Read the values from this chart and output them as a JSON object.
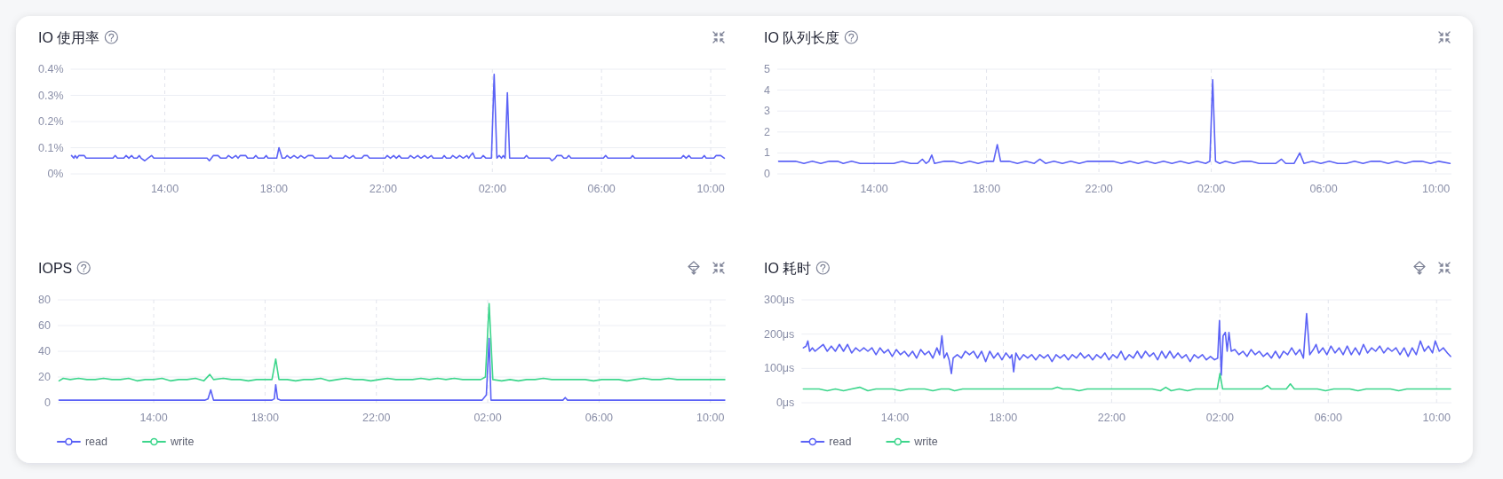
{
  "chart_data": [
    {
      "type": "line",
      "title": "IO 使用率",
      "xlim": [
        "--01-01T10:33",
        "--01-02T10:33"
      ],
      "xticks": [
        {
          "value": "--01-01T14:00",
          "label": "14:00"
        },
        {
          "value": "--01-01T18:00",
          "label": "18:00"
        },
        {
          "value": "--01-01T22:00",
          "label": "22:00"
        },
        {
          "value": "--01-02T02:00",
          "label": "02:00"
        },
        {
          "value": "--01-02T06:00",
          "label": "06:00"
        },
        {
          "value": "--01-02T10:00",
          "label": "10:00"
        }
      ],
      "ylim": [
        0,
        0.4
      ],
      "yticks": [
        {
          "value": 0,
          "label": "0%"
        },
        {
          "value": 0.1,
          "label": "0.1%"
        },
        {
          "value": 0.2,
          "label": "0.2%"
        },
        {
          "value": 0.3,
          "label": "0.3%"
        },
        {
          "value": 0.4,
          "label": "0.4%"
        }
      ],
      "grid": true,
      "series": [
        {
          "color": "#5b62f6",
          "x": [
            "--01-01T10:35",
            "--01-01T10:40",
            "--01-01T10:43",
            "--01-01T10:47",
            "--01-01T10:51",
            "--01-01T11:03",
            "--01-01T11:07",
            "--01-01T12:06",
            "--01-01T12:11",
            "--01-01T12:16",
            "--01-01T12:30",
            "--01-01T12:35",
            "--01-01T12:41",
            "--01-01T12:47",
            "--01-01T12:52",
            "--01-01T12:59",
            "--01-01T13:04",
            "--01-01T13:08",
            "--01-01T13:16",
            "--01-01T13:23",
            "--01-01T13:31",
            "--01-01T13:36",
            "--01-01T15:33",
            "--01-01T15:38",
            "--01-01T15:47",
            "--01-01T15:57",
            "--01-01T16:03",
            "--01-01T16:15",
            "--01-01T16:20",
            "--01-01T16:28",
            "--01-01T16:36",
            "--01-01T16:41",
            "--01-01T16:46",
            "--01-01T16:58",
            "--01-01T17:02",
            "--01-01T17:15",
            "--01-01T17:20",
            "--01-01T17:25",
            "--01-01T17:38",
            "--01-01T17:43",
            "--01-01T17:47",
            "--01-01T18:06",
            "--01-01T18:11",
            "--01-01T18:18",
            "--01-01T18:24",
            "--01-01T18:29",
            "--01-01T18:36",
            "--01-01T18:44",
            "--01-01T18:52",
            "--01-01T18:59",
            "--01-01T19:07",
            "--01-01T19:15",
            "--01-01T19:25",
            "--01-01T19:30",
            "--01-01T19:59",
            "--01-01T20:04",
            "--01-01T20:09",
            "--01-01T20:32",
            "--01-01T20:37",
            "--01-01T20:46",
            "--01-01T20:54",
            "--01-01T20:59",
            "--01-01T21:13",
            "--01-01T21:18",
            "--01-01T21:25",
            "--01-01T21:30",
            "--01-01T22:04",
            "--01-01T22:09",
            "--01-01T22:16",
            "--01-01T22:23",
            "--01-01T22:29",
            "--01-01T22:35",
            "--01-01T22:40",
            "--01-01T22:55",
            "--01-01T23:00",
            "--01-01T23:08",
            "--01-01T23:16",
            "--01-01T23:23",
            "--01-01T23:31",
            "--01-01T23:38",
            "--01-01T23:46",
            "--01-01T23:50",
            "--01-02T00:10",
            "--01-02T00:14",
            "--01-02T00:19",
            "--01-02T00:28",
            "--01-02T00:33",
            "--01-02T00:41",
            "--01-02T00:48",
            "--01-02T00:56",
            "--01-02T01:04",
            "--01-02T01:08",
            "--01-02T01:12",
            "--01-02T01:17",
            "--01-02T01:22",
            "--01-02T01:35",
            "--01-02T01:40",
            "--01-02T01:46",
            "--01-02T01:58",
            "--01-02T02:04",
            "--01-02T02:10",
            "--01-02T02:15",
            "--01-02T02:20",
            "--01-02T02:24",
            "--01-02T02:28",
            "--01-02T02:33",
            "--01-02T02:38",
            "--01-02T03:10",
            "--01-02T03:15",
            "--01-02T03:20",
            "--01-02T04:06",
            "--01-02T04:11",
            "--01-02T04:18",
            "--01-02T04:22",
            "--01-02T04:32",
            "--01-02T04:37",
            "--01-02T04:43",
            "--01-02T04:48",
            "--01-02T04:53",
            "--01-02T06:04",
            "--01-02T06:09",
            "--01-02T06:14",
            "--01-02T07:04",
            "--01-02T07:08",
            "--01-02T07:13",
            "--01-02T08:55",
            "--01-02T09:00",
            "--01-02T09:06",
            "--01-02T09:12",
            "--01-02T09:17",
            "--01-02T09:41",
            "--01-02T09:46",
            "--01-02T09:50",
            "--01-02T10:07",
            "--01-02T10:12",
            "--01-02T10:22",
            "--01-02T10:30"
          ],
          "values": [
            0.07,
            0.06,
            0.07,
            0.06,
            0.07,
            0.07,
            0.06,
            0.06,
            0.07,
            0.06,
            0.06,
            0.07,
            0.06,
            0.07,
            0.06,
            0.06,
            0.07,
            0.06,
            0.05,
            0.06,
            0.07,
            0.06,
            0.06,
            0.05,
            0.07,
            0.07,
            0.06,
            0.06,
            0.07,
            0.06,
            0.07,
            0.06,
            0.07,
            0.07,
            0.06,
            0.06,
            0.07,
            0.06,
            0.06,
            0.07,
            0.06,
            0.06,
            0.1,
            0.06,
            0.06,
            0.07,
            0.06,
            0.07,
            0.06,
            0.07,
            0.06,
            0.07,
            0.07,
            0.06,
            0.06,
            0.07,
            0.06,
            0.06,
            0.07,
            0.06,
            0.07,
            0.06,
            0.06,
            0.07,
            0.07,
            0.06,
            0.06,
            0.07,
            0.06,
            0.07,
            0.06,
            0.07,
            0.06,
            0.06,
            0.07,
            0.06,
            0.07,
            0.06,
            0.07,
            0.06,
            0.07,
            0.06,
            0.06,
            0.07,
            0.06,
            0.06,
            0.07,
            0.06,
            0.07,
            0.06,
            0.07,
            0.06,
            0.07,
            0.08,
            0.06,
            0.06,
            0.07,
            0.06,
            0.06,
            0.38,
            0.06,
            0.07,
            0.06,
            0.07,
            0.06,
            0.31,
            0.06,
            0.06,
            0.07,
            0.06,
            0.06,
            0.05,
            0.06,
            0.07,
            0.07,
            0.06,
            0.06,
            0.07,
            0.06,
            0.06,
            0.07,
            0.06,
            0.06,
            0.07,
            0.06,
            0.06,
            0.07,
            0.06,
            0.07,
            0.06,
            0.06,
            0.07,
            0.06,
            0.06,
            0.07,
            0.07,
            0.06
          ]
        }
      ]
    },
    {
      "type": "line",
      "title": "IO 队列长度",
      "xlim": [
        "--01-01T10:33",
        "--01-02T10:33"
      ],
      "xticks": [
        {
          "value": "--01-01T14:00",
          "label": "14:00"
        },
        {
          "value": "--01-01T18:00",
          "label": "18:00"
        },
        {
          "value": "--01-01T22:00",
          "label": "22:00"
        },
        {
          "value": "--01-02T02:00",
          "label": "02:00"
        },
        {
          "value": "--01-02T06:00",
          "label": "06:00"
        },
        {
          "value": "--01-02T10:00",
          "label": "10:00"
        }
      ],
      "ylim": [
        0,
        5
      ],
      "yticks": [
        0,
        1,
        2,
        3,
        4,
        5
      ],
      "grid": true,
      "series": [
        {
          "color": "#5b62f6",
          "x": [
            "--01-01T10:36",
            "--01-01T10:54",
            "--01-01T11:12",
            "--01-01T11:30",
            "--01-01T11:48",
            "--01-01T12:06",
            "--01-01T12:24",
            "--01-01T12:42",
            "--01-01T12:54",
            "--01-01T13:12",
            "--01-01T13:30",
            "--01-01T13:48",
            "--01-01T14:06",
            "--01-01T14:24",
            "--01-01T14:42",
            "--01-01T15:00",
            "--01-01T15:18",
            "--01-01T15:33",
            "--01-01T15:43",
            "--01-01T15:51",
            "--01-01T15:57",
            "--01-01T16:03",
            "--01-01T16:09",
            "--01-01T16:30",
            "--01-01T16:48",
            "--01-01T17:06",
            "--01-01T17:24",
            "--01-01T17:42",
            "--01-01T18:00",
            "--01-01T18:15",
            "--01-01T18:23",
            "--01-01T18:30",
            "--01-01T18:48",
            "--01-01T19:06",
            "--01-01T19:24",
            "--01-01T19:42",
            "--01-01T19:54",
            "--01-01T20:06",
            "--01-01T20:24",
            "--01-01T20:42",
            "--01-01T21:00",
            "--01-01T21:18",
            "--01-01T21:36",
            "--01-01T21:54",
            "--01-01T22:12",
            "--01-01T22:30",
            "--01-01T22:48",
            "--01-01T23:06",
            "--01-01T23:24",
            "--01-01T23:42",
            "--01-02T00:00",
            "--01-02T00:18",
            "--01-02T00:36",
            "--01-02T00:54",
            "--01-02T01:12",
            "--01-02T01:30",
            "--01-02T01:48",
            "--01-02T01:57",
            "--01-02T02:03",
            "--01-02T02:09",
            "--01-02T02:18",
            "--01-02T02:30",
            "--01-02T02:48",
            "--01-02T03:06",
            "--01-02T03:24",
            "--01-02T03:42",
            "--01-02T04:00",
            "--01-02T04:18",
            "--01-02T04:30",
            "--01-02T04:39",
            "--01-02T04:57",
            "--01-02T05:09",
            "--01-02T05:18",
            "--01-02T05:36",
            "--01-02T05:54",
            "--01-02T06:12",
            "--01-02T06:30",
            "--01-02T06:48",
            "--01-02T07:06",
            "--01-02T07:24",
            "--01-02T07:42",
            "--01-02T08:00",
            "--01-02T08:18",
            "--01-02T08:36",
            "--01-02T08:54",
            "--01-02T09:12",
            "--01-02T09:30",
            "--01-02T09:48",
            "--01-02T10:06",
            "--01-02T10:30"
          ],
          "values": [
            0.6,
            0.6,
            0.6,
            0.5,
            0.6,
            0.5,
            0.6,
            0.6,
            0.5,
            0.6,
            0.5,
            0.5,
            0.5,
            0.5,
            0.5,
            0.6,
            0.5,
            0.5,
            0.7,
            0.5,
            0.6,
            0.9,
            0.5,
            0.6,
            0.6,
            0.5,
            0.6,
            0.5,
            0.6,
            0.6,
            1.4,
            0.6,
            0.6,
            0.5,
            0.6,
            0.5,
            0.7,
            0.5,
            0.6,
            0.5,
            0.6,
            0.5,
            0.6,
            0.6,
            0.6,
            0.6,
            0.5,
            0.6,
            0.5,
            0.6,
            0.5,
            0.6,
            0.5,
            0.6,
            0.5,
            0.6,
            0.5,
            0.6,
            4.5,
            0.6,
            0.5,
            0.6,
            0.5,
            0.6,
            0.6,
            0.5,
            0.5,
            0.5,
            0.7,
            0.5,
            0.5,
            1.0,
            0.5,
            0.6,
            0.5,
            0.6,
            0.5,
            0.5,
            0.6,
            0.5,
            0.6,
            0.6,
            0.5,
            0.6,
            0.5,
            0.6,
            0.6,
            0.5,
            0.6,
            0.5
          ]
        }
      ]
    },
    {
      "type": "line",
      "title": "IOPS",
      "xlim": [
        "--01-01T10:33",
        "--01-02T10:33"
      ],
      "xticks": [
        {
          "value": "--01-01T14:00",
          "label": "14:00"
        },
        {
          "value": "--01-01T18:00",
          "label": "18:00"
        },
        {
          "value": "--01-01T22:00",
          "label": "22:00"
        },
        {
          "value": "--01-02T02:00",
          "label": "02:00"
        },
        {
          "value": "--01-02T06:00",
          "label": "06:00"
        },
        {
          "value": "--01-02T10:00",
          "label": "10:00"
        }
      ],
      "ylim": [
        0,
        80
      ],
      "yticks": [
        0,
        20,
        40,
        60,
        80
      ],
      "grid": true,
      "legend": "bottom left",
      "series": [
        {
          "name": "read",
          "color": "#5b62f6",
          "x": [
            "--01-01T10:36",
            "--01-01T15:51",
            "--01-01T15:57",
            "--01-01T16:03",
            "--01-01T16:09",
            "--01-01T16:15",
            "--01-01T18:15",
            "--01-01T18:20",
            "--01-01T18:23",
            "--01-01T18:27",
            "--01-01T18:33",
            "--01-02T01:48",
            "--01-02T01:57",
            "--01-02T02:03",
            "--01-02T02:07",
            "--01-02T04:42",
            "--01-02T04:47",
            "--01-02T04:52",
            "--01-02T10:31"
          ],
          "values": [
            2,
            2,
            3,
            10,
            2,
            2,
            2,
            3,
            14,
            3,
            2,
            2,
            6,
            50,
            2,
            2,
            4,
            2,
            2
          ]
        },
        {
          "name": "write",
          "color": "#3dd68c",
          "x": [
            "--01-01T10:36",
            "--01-01T10:45",
            "--01-01T11:00",
            "--01-01T11:18",
            "--01-01T11:36",
            "--01-01T11:54",
            "--01-01T12:12",
            "--01-01T12:30",
            "--01-01T12:48",
            "--01-01T13:06",
            "--01-01T13:24",
            "--01-01T13:42",
            "--01-01T14:00",
            "--01-01T14:18",
            "--01-01T14:36",
            "--01-01T14:54",
            "--01-01T15:12",
            "--01-01T15:30",
            "--01-01T15:48",
            "--01-01T16:01",
            "--01-01T16:09",
            "--01-01T16:30",
            "--01-01T16:48",
            "--01-01T17:06",
            "--01-01T17:24",
            "--01-01T17:42",
            "--01-01T18:00",
            "--01-01T18:15",
            "--01-01T18:23",
            "--01-01T18:30",
            "--01-01T18:48",
            "--01-01T19:06",
            "--01-01T19:24",
            "--01-01T19:42",
            "--01-01T20:00",
            "--01-01T20:18",
            "--01-01T20:36",
            "--01-01T20:54",
            "--01-01T21:12",
            "--01-01T21:30",
            "--01-01T21:48",
            "--01-01T22:06",
            "--01-01T22:24",
            "--01-01T22:42",
            "--01-01T23:00",
            "--01-01T23:18",
            "--01-01T23:36",
            "--01-01T23:54",
            "--01-02T00:12",
            "--01-02T00:30",
            "--01-02T00:48",
            "--01-02T01:06",
            "--01-02T01:24",
            "--01-02T01:45",
            "--01-02T01:55",
            "--01-02T02:03",
            "--01-02T02:11",
            "--01-02T02:30",
            "--01-02T02:48",
            "--01-02T03:06",
            "--01-02T03:24",
            "--01-02T03:42",
            "--01-02T04:00",
            "--01-02T04:18",
            "--01-02T04:36",
            "--01-02T04:54",
            "--01-02T05:12",
            "--01-02T05:30",
            "--01-02T05:48",
            "--01-02T06:06",
            "--01-02T06:24",
            "--01-02T06:42",
            "--01-02T07:00",
            "--01-02T07:18",
            "--01-02T07:36",
            "--01-02T07:54",
            "--01-02T08:12",
            "--01-02T08:30",
            "--01-02T08:48",
            "--01-02T09:06",
            "--01-02T09:24",
            "--01-02T09:42",
            "--01-02T10:00",
            "--01-02T10:18",
            "--01-02T10:31"
          ],
          "values": [
            17,
            19,
            18,
            19,
            18,
            18,
            19,
            18,
            18,
            19,
            17,
            18,
            18,
            19,
            17,
            18,
            18,
            19,
            17,
            22,
            18,
            19,
            18,
            18,
            17,
            18,
            18,
            18,
            34,
            18,
            18,
            17,
            18,
            18,
            19,
            17,
            18,
            19,
            18,
            18,
            17,
            18,
            19,
            18,
            18,
            18,
            19,
            18,
            19,
            18,
            19,
            18,
            18,
            18,
            20,
            77,
            18,
            17,
            18,
            17,
            18,
            18,
            19,
            18,
            18,
            18,
            18,
            18,
            17,
            18,
            18,
            18,
            17,
            18,
            19,
            18,
            18,
            19,
            18,
            18,
            18,
            18,
            18,
            18,
            18
          ]
        }
      ]
    },
    {
      "type": "line",
      "title": "IO 耗时",
      "xlim": [
        "--01-01T10:33",
        "--01-02T10:33"
      ],
      "xticks": [
        {
          "value": "--01-01T14:00",
          "label": "14:00"
        },
        {
          "value": "--01-01T18:00",
          "label": "18:00"
        },
        {
          "value": "--01-01T22:00",
          "label": "22:00"
        },
        {
          "value": "--01-02T02:00",
          "label": "02:00"
        },
        {
          "value": "--01-02T06:00",
          "label": "06:00"
        },
        {
          "value": "--01-02T10:00",
          "label": "10:00"
        }
      ],
      "ylim": [
        0,
        300
      ],
      "yticks": [
        {
          "value": 0,
          "label": "0μs"
        },
        {
          "value": 100,
          "label": "100μs"
        },
        {
          "value": 200,
          "label": "200μs"
        },
        {
          "value": 300,
          "label": "300μs"
        }
      ],
      "grid": true,
      "legend": "bottom left",
      "series": [
        {
          "name": "read",
          "color": "#5b62f6",
          "x": [
            "--01-01T10:37",
            "--01-01T10:43",
            "--01-01T10:47",
            "--01-01T10:51",
            "--01-01T10:57",
            "--01-01T11:03",
            "--01-01T11:12",
            "--01-01T11:21",
            "--01-01T11:30",
            "--01-01T11:39",
            "--01-01T11:48",
            "--01-01T11:57",
            "--01-01T12:06",
            "--01-01T12:15",
            "--01-01T12:24",
            "--01-01T12:33",
            "--01-01T12:42",
            "--01-01T12:51",
            "--01-01T13:00",
            "--01-01T13:09",
            "--01-01T13:18",
            "--01-01T13:27",
            "--01-01T13:36",
            "--01-01T13:45",
            "--01-01T13:54",
            "--01-01T14:03",
            "--01-01T14:12",
            "--01-01T14:21",
            "--01-01T14:30",
            "--01-01T14:39",
            "--01-01T14:48",
            "--01-01T14:57",
            "--01-01T15:06",
            "--01-01T15:15",
            "--01-01T15:24",
            "--01-01T15:33",
            "--01-01T15:39",
            "--01-01T15:44",
            "--01-01T15:49",
            "--01-01T15:55",
            "--01-01T16:00",
            "--01-01T16:05",
            "--01-01T16:09",
            "--01-01T16:18",
            "--01-01T16:27",
            "--01-01T16:36",
            "--01-01T16:45",
            "--01-01T16:54",
            "--01-01T17:03",
            "--01-01T17:12",
            "--01-01T17:21",
            "--01-01T17:30",
            "--01-01T17:39",
            "--01-01T17:48",
            "--01-01T17:57",
            "--01-01T18:06",
            "--01-01T18:15",
            "--01-01T18:19",
            "--01-01T18:23",
            "--01-01T18:28",
            "--01-01T18:36",
            "--01-01T18:45",
            "--01-01T18:54",
            "--01-01T19:03",
            "--01-01T19:12",
            "--01-01T19:21",
            "--01-01T19:30",
            "--01-01T19:39",
            "--01-01T19:48",
            "--01-01T19:57",
            "--01-01T20:06",
            "--01-01T20:15",
            "--01-01T20:24",
            "--01-01T20:33",
            "--01-01T20:42",
            "--01-01T20:51",
            "--01-01T21:00",
            "--01-01T21:09",
            "--01-01T21:18",
            "--01-01T21:27",
            "--01-01T21:36",
            "--01-01T21:45",
            "--01-01T21:54",
            "--01-01T22:03",
            "--01-01T22:12",
            "--01-01T22:21",
            "--01-01T22:30",
            "--01-01T22:39",
            "--01-01T22:48",
            "--01-01T22:57",
            "--01-01T23:06",
            "--01-01T23:15",
            "--01-01T23:24",
            "--01-01T23:33",
            "--01-01T23:42",
            "--01-01T23:51",
            "--01-02T00:00",
            "--01-02T00:09",
            "--01-02T00:18",
            "--01-02T00:27",
            "--01-02T00:36",
            "--01-02T00:45",
            "--01-02T00:54",
            "--01-02T01:03",
            "--01-02T01:12",
            "--01-02T01:21",
            "--01-02T01:30",
            "--01-02T01:39",
            "--01-02T01:48",
            "--01-02T01:55",
            "--01-02T01:59",
            "--01-02T02:03",
            "--01-02T02:07",
            "--01-02T02:12",
            "--01-02T02:16",
            "--01-02T02:20",
            "--01-02T02:25",
            "--01-02T02:33",
            "--01-02T02:42",
            "--01-02T02:51",
            "--01-02T03:00",
            "--01-02T03:09",
            "--01-02T03:18",
            "--01-02T03:27",
            "--01-02T03:36",
            "--01-02T03:45",
            "--01-02T03:54",
            "--01-02T04:03",
            "--01-02T04:12",
            "--01-02T04:21",
            "--01-02T04:30",
            "--01-02T04:39",
            "--01-02T04:48",
            "--01-02T04:57",
            "--01-02T05:05",
            "--01-02T05:12",
            "--01-02T05:19",
            "--01-02T05:27",
            "--01-02T05:33",
            "--01-02T05:39",
            "--01-02T05:48",
            "--01-02T05:57",
            "--01-02T06:06",
            "--01-02T06:15",
            "--01-02T06:24",
            "--01-02T06:33",
            "--01-02T06:42",
            "--01-02T06:51",
            "--01-02T07:00",
            "--01-02T07:09",
            "--01-02T07:18",
            "--01-02T07:27",
            "--01-02T07:36",
            "--01-02T07:45",
            "--01-02T07:54",
            "--01-02T08:03",
            "--01-02T08:12",
            "--01-02T08:21",
            "--01-02T08:30",
            "--01-02T08:39",
            "--01-02T08:48",
            "--01-02T08:57",
            "--01-02T09:06",
            "--01-02T09:15",
            "--01-02T09:24",
            "--01-02T09:33",
            "--01-02T09:42",
            "--01-02T09:51",
            "--01-02T09:57",
            "--01-02T10:06",
            "--01-02T10:15",
            "--01-02T10:24",
            "--01-02T10:31"
          ],
          "values": [
            160,
            165,
            180,
            150,
            160,
            150,
            160,
            170,
            150,
            165,
            150,
            170,
            150,
            170,
            145,
            160,
            150,
            160,
            150,
            160,
            140,
            160,
            145,
            155,
            135,
            155,
            140,
            150,
            135,
            150,
            130,
            155,
            140,
            150,
            130,
            160,
            140,
            195,
            130,
            145,
            125,
            85,
            130,
            140,
            130,
            150,
            140,
            150,
            130,
            150,
            120,
            150,
            130,
            145,
            125,
            145,
            130,
            140,
            90,
            145,
            125,
            140,
            130,
            140,
            125,
            140,
            130,
            140,
            120,
            140,
            130,
            140,
            125,
            140,
            130,
            145,
            130,
            140,
            125,
            140,
            130,
            145,
            125,
            140,
            130,
            150,
            125,
            140,
            130,
            150,
            130,
            150,
            135,
            145,
            125,
            150,
            130,
            150,
            130,
            145,
            130,
            140,
            120,
            140,
            130,
            140,
            125,
            135,
            125,
            130,
            240,
            80,
            195,
            205,
            150,
            205,
            150,
            155,
            140,
            150,
            135,
            155,
            140,
            150,
            135,
            145,
            130,
            150,
            130,
            150,
            140,
            160,
            140,
            155,
            130,
            260,
            140,
            155,
            170,
            145,
            160,
            140,
            165,
            145,
            160,
            140,
            165,
            140,
            160,
            140,
            170,
            145,
            160,
            150,
            165,
            145,
            160,
            150,
            160,
            140,
            160,
            135,
            160,
            140,
            180,
            150,
            165,
            145,
            180,
            150,
            160,
            145,
            135
          ]
        },
        {
          "name": "write",
          "color": "#3dd68c",
          "x": [
            "--01-01T10:37",
            "--01-01T10:54",
            "--01-01T11:12",
            "--01-01T11:30",
            "--01-01T11:48",
            "--01-01T12:06",
            "--01-01T12:24",
            "--01-01T12:42",
            "--01-01T13:00",
            "--01-01T13:18",
            "--01-01T13:36",
            "--01-01T13:54",
            "--01-01T14:12",
            "--01-01T14:30",
            "--01-01T14:48",
            "--01-01T15:06",
            "--01-01T15:24",
            "--01-01T15:42",
            "--01-01T16:00",
            "--01-01T16:12",
            "--01-01T16:30",
            "--01-01T16:48",
            "--01-01T17:06",
            "--01-01T17:24",
            "--01-01T17:42",
            "--01-01T18:00",
            "--01-01T18:18",
            "--01-01T18:36",
            "--01-01T18:54",
            "--01-01T19:12",
            "--01-01T19:30",
            "--01-01T19:48",
            "--01-01T20:00",
            "--01-01T20:12",
            "--01-01T20:30",
            "--01-01T20:48",
            "--01-01T21:06",
            "--01-01T21:24",
            "--01-01T21:42",
            "--01-01T22:00",
            "--01-01T22:18",
            "--01-01T22:36",
            "--01-01T22:54",
            "--01-01T23:12",
            "--01-01T23:30",
            "--01-01T23:48",
            "--01-02T00:00",
            "--01-02T00:12",
            "--01-02T00:30",
            "--01-02T00:48",
            "--01-02T01:06",
            "--01-02T01:24",
            "--01-02T01:42",
            "--01-02T01:54",
            "--01-02T02:00",
            "--01-02T02:06",
            "--01-02T02:24",
            "--01-02T02:42",
            "--01-02T03:00",
            "--01-02T03:18",
            "--01-02T03:33",
            "--01-02T03:45",
            "--01-02T03:54",
            "--01-02T04:12",
            "--01-02T04:27",
            "--01-02T04:36",
            "--01-02T04:45",
            "--01-02T05:00",
            "--01-02T05:18",
            "--01-02T05:36",
            "--01-02T05:54",
            "--01-02T06:12",
            "--01-02T06:30",
            "--01-02T06:48",
            "--01-02T07:06",
            "--01-02T07:24",
            "--01-02T07:42",
            "--01-02T08:00",
            "--01-02T08:18",
            "--01-02T08:36",
            "--01-02T08:54",
            "--01-02T09:12",
            "--01-02T09:30",
            "--01-02T09:48",
            "--01-02T10:06",
            "--01-02T10:18",
            "--01-02T10:31"
          ],
          "values": [
            40,
            40,
            40,
            35,
            40,
            35,
            40,
            45,
            35,
            40,
            40,
            40,
            35,
            40,
            40,
            40,
            35,
            40,
            40,
            35,
            40,
            40,
            40,
            40,
            40,
            40,
            40,
            40,
            40,
            40,
            40,
            40,
            45,
            40,
            40,
            35,
            40,
            40,
            40,
            40,
            40,
            40,
            40,
            40,
            40,
            35,
            45,
            35,
            40,
            35,
            40,
            40,
            40,
            40,
            85,
            40,
            40,
            40,
            40,
            40,
            40,
            50,
            40,
            40,
            40,
            55,
            40,
            40,
            40,
            40,
            35,
            40,
            40,
            40,
            35,
            40,
            40,
            40,
            40,
            35,
            40,
            40,
            40,
            40,
            40,
            40,
            40
          ]
        }
      ]
    }
  ]
}
